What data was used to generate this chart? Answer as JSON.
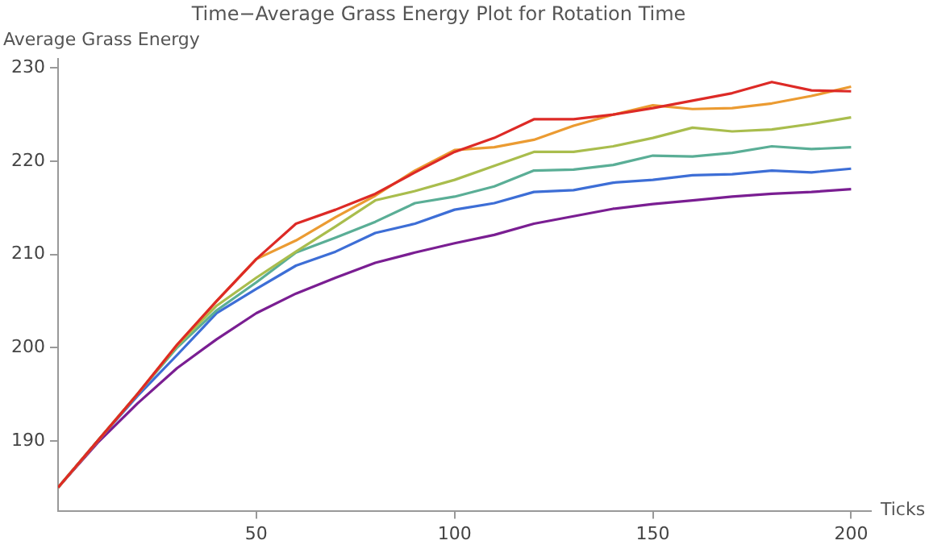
{
  "chart_data": {
    "type": "line",
    "title": "Time−Average Grass Energy Plot for Rotation Time",
    "xlabel": "Ticks",
    "ylabel": "Average Grass Energy",
    "x": [
      0,
      10,
      20,
      30,
      40,
      50,
      60,
      70,
      80,
      90,
      100,
      110,
      120,
      130,
      140,
      150,
      160,
      170,
      180,
      190,
      200
    ],
    "series": [
      {
        "color": "#dd2a26",
        "values": [
          185,
          190,
          195,
          200.3,
          205,
          209.5,
          213.3,
          214.8,
          216.5,
          218.8,
          221,
          222.5,
          224.5,
          224.5,
          225,
          225.7,
          226.5,
          227.3,
          228.5,
          227.6,
          227.5
        ]
      },
      {
        "color": "#eb9b32",
        "values": [
          185,
          190,
          195,
          200.3,
          205,
          209.5,
          211.5,
          214,
          216.3,
          219,
          221.2,
          221.5,
          222.3,
          223.8,
          225,
          226,
          225.6,
          225.7,
          226.2,
          227,
          228
        ]
      },
      {
        "color": "#a9bd4d",
        "values": [
          185,
          190,
          195,
          200.2,
          204.5,
          207.5,
          210.3,
          213,
          215.8,
          216.8,
          218,
          219.5,
          221,
          221,
          221.6,
          222.5,
          223.6,
          223.2,
          223.4,
          224,
          224.7
        ]
      },
      {
        "color": "#5aae96",
        "values": [
          185,
          190,
          195,
          200,
          204,
          207,
          210.2,
          211.8,
          213.5,
          215.5,
          216.2,
          217.3,
          219,
          219.1,
          219.6,
          220.6,
          220.5,
          220.9,
          221.6,
          221.3,
          221.5
        ]
      },
      {
        "color": "#3d6ed6",
        "values": [
          185,
          190,
          194.8,
          199.2,
          203.7,
          206.3,
          208.8,
          210.3,
          212.3,
          213.3,
          214.8,
          215.5,
          216.7,
          216.9,
          217.7,
          218,
          218.5,
          218.6,
          219,
          218.8,
          219.2
        ]
      },
      {
        "color": "#7a1e92",
        "values": [
          185,
          189.8,
          194,
          197.8,
          200.9,
          203.7,
          205.8,
          207.5,
          209.1,
          210.2,
          211.2,
          212.1,
          213.3,
          214.1,
          214.9,
          215.4,
          215.8,
          216.2,
          216.5,
          216.7,
          217
        ]
      }
    ],
    "xlim": [
      0,
      205
    ],
    "xticks": [
      50,
      100,
      150,
      200
    ],
    "ylim": [
      182.5,
      231
    ],
    "yticks": [
      190,
      200,
      210,
      220,
      230
    ],
    "grid": false,
    "legend": false,
    "marker": "none",
    "line_style": "solid"
  }
}
